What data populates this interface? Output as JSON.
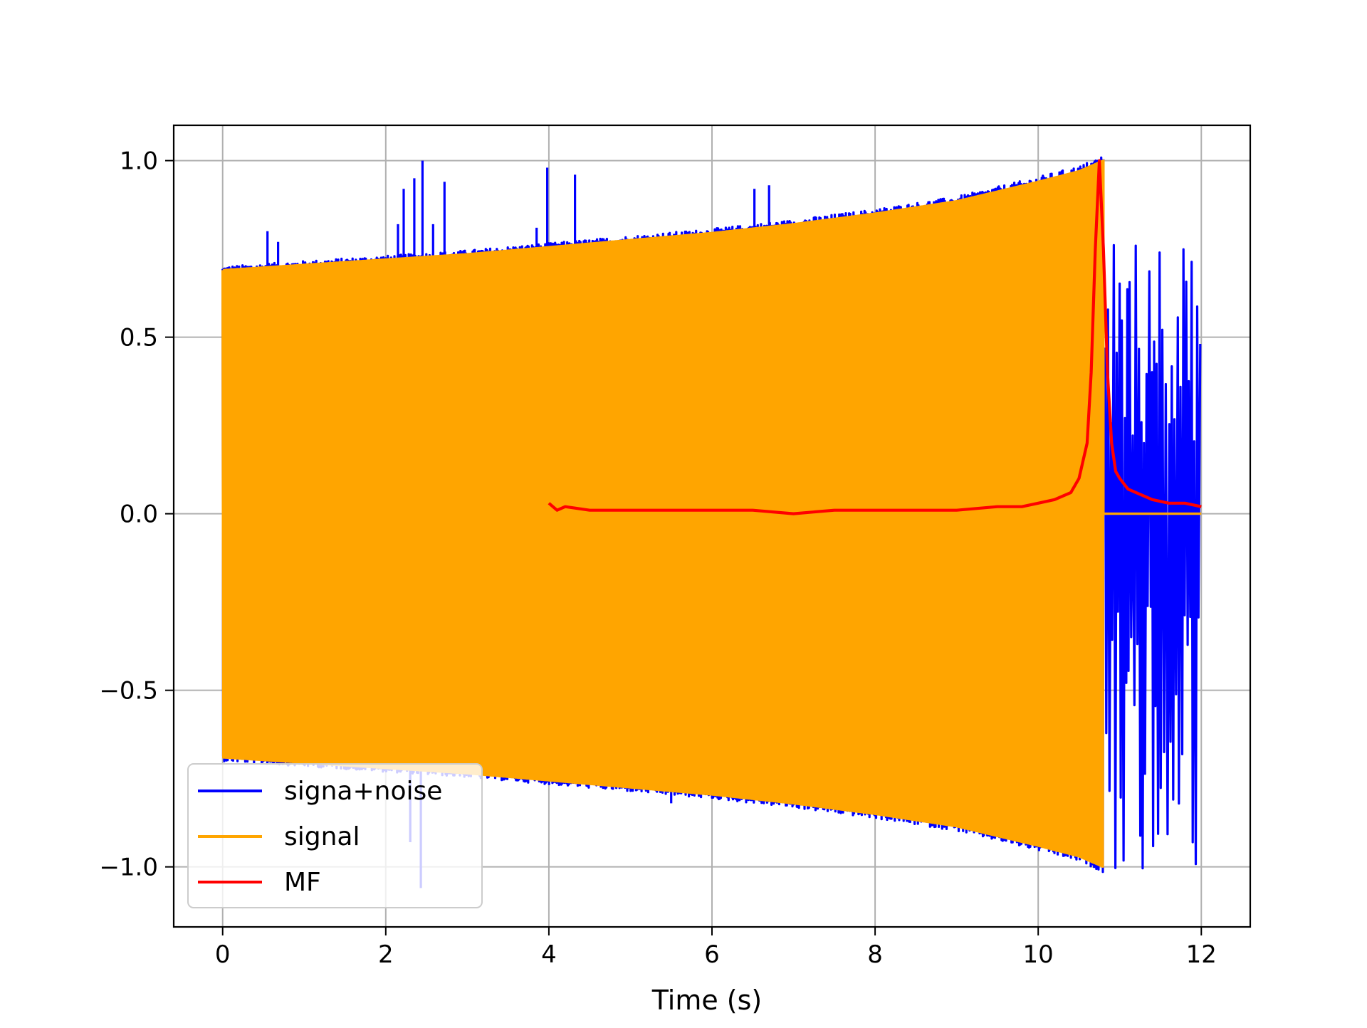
{
  "chart_data": {
    "type": "line",
    "title": "",
    "xlabel": "Time (s)",
    "ylabel": "",
    "xlim": [
      -0.6,
      12.6
    ],
    "ylim": [
      -1.17,
      1.1
    ],
    "xticks": [
      0,
      2,
      4,
      6,
      8,
      10,
      12
    ],
    "xtick_labels": [
      "0",
      "2",
      "4",
      "6",
      "8",
      "10",
      "12"
    ],
    "yticks": [
      -1.0,
      -0.5,
      0.0,
      0.5,
      1.0
    ],
    "ytick_labels": [
      "−1.0",
      "−0.5",
      "0.0",
      "0.5",
      "1.0"
    ],
    "grid": true,
    "legend_position": "lower-left",
    "series": [
      {
        "name": "signa+noise",
        "color": "#0000ff",
        "description_values": {
          "time_range": [
            0,
            12
          ],
          "noise_spikes": [
            {
              "x": 0.3,
              "y": 0.7
            },
            {
              "x": 0.55,
              "y": 0.8
            },
            {
              "x": 0.68,
              "y": 0.77
            },
            {
              "x": 2.15,
              "y": 0.82
            },
            {
              "x": 2.22,
              "y": 0.92
            },
            {
              "x": 2.35,
              "y": 0.95
            },
            {
              "x": 2.45,
              "y": 1.0
            },
            {
              "x": 2.58,
              "y": 0.82
            },
            {
              "x": 2.72,
              "y": 0.94
            },
            {
              "x": 3.85,
              "y": 0.81
            },
            {
              "x": 3.98,
              "y": 0.98
            },
            {
              "x": 4.32,
              "y": 0.96
            },
            {
              "x": 6.3,
              "y": 0.81
            },
            {
              "x": 6.52,
              "y": 0.92
            },
            {
              "x": 6.7,
              "y": 0.93
            },
            {
              "x": 2.3,
              "y": -0.93
            },
            {
              "x": 2.43,
              "y": -1.06
            },
            {
              "x": 5.5,
              "y": -0.82
            }
          ],
          "post_signal_noise_range": [
            -1.04,
            0.78
          ]
        }
      },
      {
        "name": "signal",
        "color": "#ffa500",
        "envelope": {
          "x": [
            0,
            1,
            2,
            3,
            4,
            5,
            6,
            7,
            8,
            9,
            10,
            10.5,
            10.8
          ],
          "amplitude": [
            0.69,
            0.705,
            0.72,
            0.735,
            0.755,
            0.775,
            0.795,
            0.82,
            0.85,
            0.885,
            0.94,
            0.97,
            1.0
          ]
        },
        "end_time": 10.8,
        "after_end_value": 0.0
      },
      {
        "name": "MF",
        "color": "#ff0000",
        "x": [
          4.0,
          4.1,
          4.2,
          4.5,
          5.0,
          5.5,
          6.0,
          6.5,
          7.0,
          7.5,
          8.0,
          8.5,
          9.0,
          9.5,
          9.8,
          10.0,
          10.2,
          10.4,
          10.5,
          10.6,
          10.65,
          10.7,
          10.75,
          10.8,
          10.85,
          10.9,
          10.95,
          11.0,
          11.1,
          11.2,
          11.4,
          11.6,
          11.8,
          12.0
        ],
        "y": [
          0.03,
          0.01,
          0.02,
          0.01,
          0.01,
          0.01,
          0.01,
          0.01,
          0.0,
          0.01,
          0.01,
          0.01,
          0.01,
          0.02,
          0.02,
          0.03,
          0.04,
          0.06,
          0.1,
          0.2,
          0.4,
          0.75,
          1.0,
          0.75,
          0.4,
          0.2,
          0.12,
          0.1,
          0.07,
          0.06,
          0.04,
          0.03,
          0.03,
          0.02
        ]
      }
    ]
  }
}
